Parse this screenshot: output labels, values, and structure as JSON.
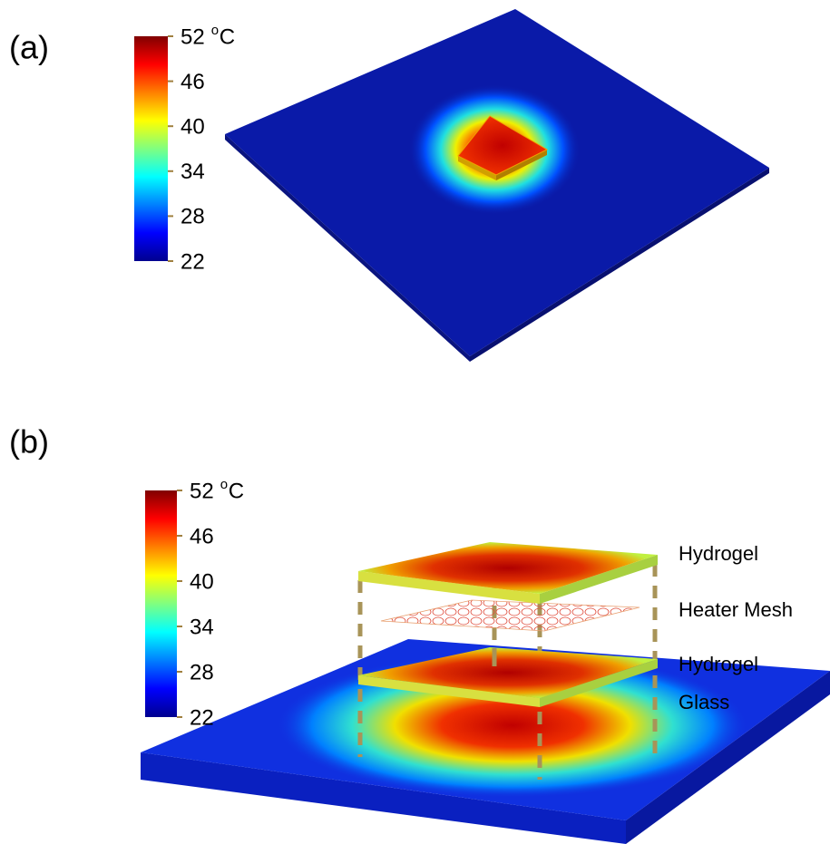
{
  "panels": [
    {
      "label": "(a)",
      "colorbar": {
        "ticks": [
          52,
          46,
          40,
          34,
          28,
          22
        ],
        "unit_sup": "o",
        "unit": "C"
      }
    },
    {
      "label": "(b)",
      "colorbar": {
        "ticks": [
          52,
          46,
          40,
          34,
          28,
          22
        ],
        "unit_sup": "o",
        "unit": "C"
      },
      "layers": [
        "Hydrogel",
        "Heater Mesh",
        "Hydrogel",
        "Glass"
      ]
    }
  ]
}
